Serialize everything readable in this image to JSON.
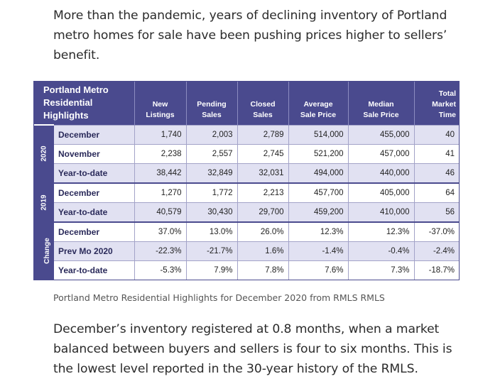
{
  "intro": "More than the pandemic, years of declining inventory of Portland metro homes for sale have been pushing prices higher to sellers’ benefit.",
  "table": {
    "title": [
      "Portland Metro",
      "Residential",
      "Highlights"
    ],
    "headers": [
      [
        "New",
        "Listings"
      ],
      [
        "Pending",
        "Sales"
      ],
      [
        "Closed",
        "Sales"
      ],
      [
        "Average",
        "Sale Price"
      ],
      [
        "Median",
        "Sale Price"
      ],
      [
        "Total",
        "Market",
        "Time"
      ]
    ],
    "groups": [
      {
        "name": "2020",
        "rows": [
          {
            "label": "December",
            "values": [
              "1,740",
              "2,003",
              "2,789",
              "514,000",
              "455,000",
              "40"
            ]
          },
          {
            "label": "November",
            "values": [
              "2,238",
              "2,557",
              "2,745",
              "521,200",
              "457,000",
              "41"
            ]
          },
          {
            "label": "Year-to-date",
            "values": [
              "38,442",
              "32,849",
              "32,031",
              "494,000",
              "440,000",
              "46"
            ]
          }
        ]
      },
      {
        "name": "2019",
        "rows": [
          {
            "label": "December",
            "values": [
              "1,270",
              "1,772",
              "2,213",
              "457,700",
              "405,000",
              "64"
            ]
          },
          {
            "label": "Year-to-date",
            "values": [
              "40,579",
              "30,430",
              "29,700",
              "459,200",
              "410,000",
              "56"
            ]
          }
        ]
      },
      {
        "name": "Change",
        "rows": [
          {
            "label": "December",
            "values": [
              "37.0%",
              "13.0%",
              "26.0%",
              "12.3%",
              "12.3%",
              "-37.0%"
            ]
          },
          {
            "label": "Prev Mo 2020",
            "values": [
              "-22.3%",
              "-21.7%",
              "1.6%",
              "-1.4%",
              "-0.4%",
              "-2.4%"
            ]
          },
          {
            "label": "Year-to-date",
            "values": [
              "-5.3%",
              "7.9%",
              "7.8%",
              "7.6%",
              "7.3%",
              "-18.7%"
            ]
          }
        ]
      }
    ]
  },
  "caption": "Portland Metro Residential Highlights for December 2020 from RMLS RMLS",
  "outro": "December’s inventory registered at 0.8 months, when a market balanced between buyers and sellers is four to six months. This is the lowest level reported in the 30-year history of the RMLS.",
  "colors": {
    "header_bg": "#4a4a8e",
    "row_shade": "#e1e1f2",
    "row_white": "#ffffff"
  }
}
